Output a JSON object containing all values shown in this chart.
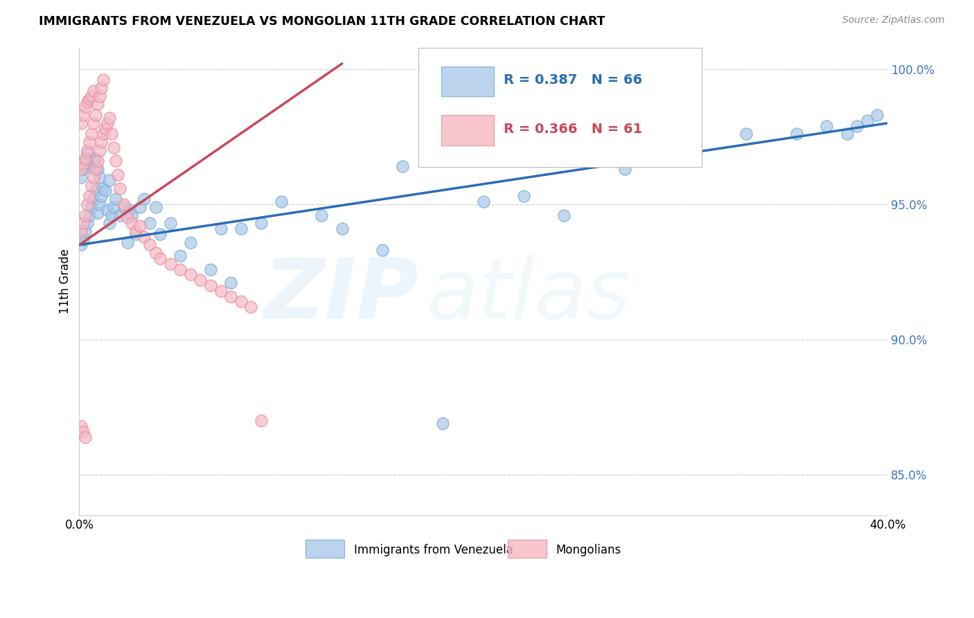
{
  "title": "IMMIGRANTS FROM VENEZUELA VS MONGOLIAN 11TH GRADE CORRELATION CHART",
  "source": "Source: ZipAtlas.com",
  "ylabel": "11th Grade",
  "xlim": [
    0.0,
    0.4
  ],
  "ylim": [
    0.835,
    1.008
  ],
  "blue_label": "Immigrants from Venezuela",
  "pink_label": "Mongolians",
  "blue_R": "R = 0.387",
  "blue_N": "N = 66",
  "pink_R": "R = 0.366",
  "pink_N": "N = 61",
  "blue_color": "#aac8e8",
  "blue_edge": "#7bafd4",
  "pink_color": "#f5b8c4",
  "pink_edge": "#e890a0",
  "blue_line_color": "#2a6db5",
  "pink_line_color": "#c9485b",
  "watermark_zip": "ZIP",
  "watermark_atlas": "atlas",
  "ytick_color": "#4472c4",
  "blue_x": [
    0.001,
    0.001,
    0.002,
    0.002,
    0.003,
    0.003,
    0.004,
    0.004,
    0.005,
    0.005,
    0.006,
    0.006,
    0.007,
    0.007,
    0.008,
    0.008,
    0.009,
    0.009,
    0.01,
    0.01,
    0.011,
    0.012,
    0.013,
    0.014,
    0.015,
    0.015,
    0.016,
    0.017,
    0.018,
    0.02,
    0.022,
    0.024,
    0.025,
    0.026,
    0.028,
    0.03,
    0.032,
    0.035,
    0.038,
    0.04,
    0.045,
    0.05,
    0.055,
    0.065,
    0.07,
    0.075,
    0.08,
    0.09,
    0.1,
    0.12,
    0.13,
    0.15,
    0.16,
    0.18,
    0.2,
    0.22,
    0.24,
    0.27,
    0.3,
    0.33,
    0.355,
    0.37,
    0.38,
    0.385,
    0.39,
    0.395
  ],
  "blue_y": [
    0.935,
    0.96,
    0.937,
    0.963,
    0.94,
    0.966,
    0.943,
    0.969,
    0.946,
    0.964,
    0.949,
    0.965,
    0.952,
    0.966,
    0.955,
    0.967,
    0.947,
    0.963,
    0.95,
    0.96,
    0.953,
    0.956,
    0.955,
    0.948,
    0.943,
    0.959,
    0.946,
    0.949,
    0.952,
    0.946,
    0.949,
    0.936,
    0.948,
    0.946,
    0.939,
    0.949,
    0.952,
    0.943,
    0.949,
    0.939,
    0.943,
    0.931,
    0.936,
    0.926,
    0.941,
    0.921,
    0.941,
    0.943,
    0.951,
    0.946,
    0.941,
    0.933,
    0.964,
    0.869,
    0.951,
    0.953,
    0.946,
    0.963,
    0.969,
    0.976,
    0.976,
    0.979,
    0.976,
    0.979,
    0.981,
    0.983
  ],
  "pink_x": [
    0.001,
    0.001,
    0.001,
    0.002,
    0.002,
    0.002,
    0.003,
    0.003,
    0.003,
    0.004,
    0.004,
    0.004,
    0.005,
    0.005,
    0.005,
    0.006,
    0.006,
    0.006,
    0.007,
    0.007,
    0.007,
    0.008,
    0.008,
    0.009,
    0.009,
    0.01,
    0.01,
    0.011,
    0.011,
    0.012,
    0.012,
    0.013,
    0.014,
    0.015,
    0.016,
    0.017,
    0.018,
    0.019,
    0.02,
    0.022,
    0.024,
    0.026,
    0.028,
    0.03,
    0.032,
    0.035,
    0.038,
    0.04,
    0.045,
    0.05,
    0.055,
    0.06,
    0.065,
    0.07,
    0.075,
    0.08,
    0.085,
    0.09,
    0.001,
    0.002,
    0.003
  ],
  "pink_y": [
    0.94,
    0.963,
    0.98,
    0.943,
    0.965,
    0.983,
    0.946,
    0.967,
    0.986,
    0.95,
    0.97,
    0.988,
    0.953,
    0.973,
    0.989,
    0.957,
    0.976,
    0.99,
    0.96,
    0.98,
    0.992,
    0.963,
    0.983,
    0.966,
    0.987,
    0.97,
    0.99,
    0.973,
    0.993,
    0.976,
    0.996,
    0.978,
    0.98,
    0.982,
    0.976,
    0.971,
    0.966,
    0.961,
    0.956,
    0.95,
    0.945,
    0.943,
    0.94,
    0.942,
    0.938,
    0.935,
    0.932,
    0.93,
    0.928,
    0.926,
    0.924,
    0.922,
    0.92,
    0.918,
    0.916,
    0.914,
    0.912,
    0.87,
    0.868,
    0.866,
    0.864
  ]
}
